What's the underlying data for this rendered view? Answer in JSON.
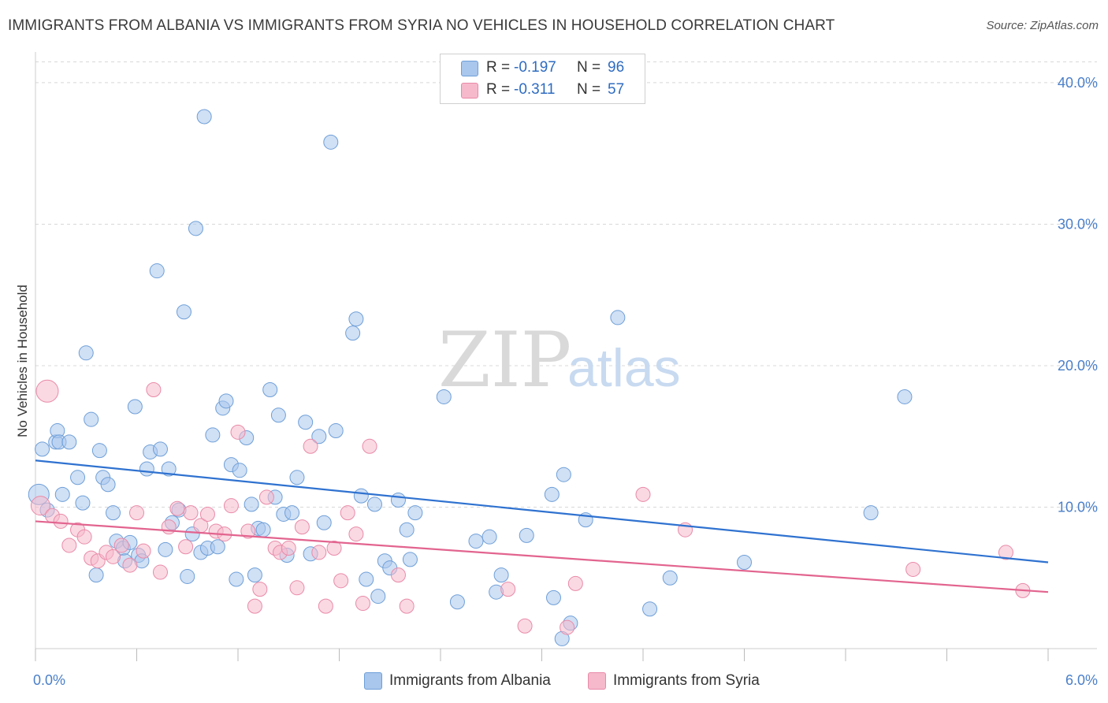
{
  "title": "IMMIGRANTS FROM ALBANIA VS IMMIGRANTS FROM SYRIA NO VEHICLES IN HOUSEHOLD CORRELATION CHART",
  "source": "Source: ZipAtlas.com",
  "watermark": {
    "zip": "ZIP",
    "atlas": "atlas"
  },
  "stats": {
    "albania": {
      "r_label": "R =",
      "r_value": "-0.197",
      "n_label": "N =",
      "n_value": "96"
    },
    "syria": {
      "r_label": "R =",
      "r_value": "-0.311",
      "n_label": "N =",
      "n_value": "57"
    }
  },
  "legend": {
    "albania": "Immigrants from Albania",
    "syria": "Immigrants from Syria"
  },
  "colors": {
    "albania_fill": "#a9c6ec",
    "albania_stroke": "#6e9fd8",
    "albania_line": "#2f72d0",
    "syria_fill": "#f6b9cc",
    "syria_stroke": "#e98aa8",
    "syria_line": "#e2648f",
    "grid": "#d8d8d8",
    "axis_label": "#4a7fc9"
  },
  "chart_data": {
    "type": "scatter",
    "title": "IMMIGRANTS FROM ALBANIA VS IMMIGRANTS FROM SYRIA NO VEHICLES IN HOUSEHOLD CORRELATION CHART",
    "xlabel": "",
    "ylabel": "No Vehicles in Household",
    "xlim": [
      0,
      6
    ],
    "ylim": [
      0,
      41.5
    ],
    "x_tick_labels": [
      "0.0%",
      "6.0%"
    ],
    "y_ticks": [
      10,
      20,
      30,
      40
    ],
    "y_tick_labels": [
      "10.0%",
      "20.0%",
      "30.0%",
      "40.0%"
    ],
    "grid": true,
    "legend_position": "bottom",
    "series": [
      {
        "name": "Immigrants from Albania",
        "r": -0.197,
        "n": 96,
        "trend": {
          "x": [
            0,
            6
          ],
          "y": [
            13.3,
            6.1
          ]
        },
        "points": [
          [
            0.02,
            10.9
          ],
          [
            0.04,
            14.1
          ],
          [
            0.07,
            9.8
          ],
          [
            0.12,
            14.6
          ],
          [
            0.13,
            15.4
          ],
          [
            0.14,
            14.6
          ],
          [
            0.16,
            10.9
          ],
          [
            0.2,
            14.6
          ],
          [
            0.25,
            12.1
          ],
          [
            0.28,
            10.3
          ],
          [
            0.3,
            20.9
          ],
          [
            0.33,
            16.2
          ],
          [
            0.36,
            5.2
          ],
          [
            0.38,
            14.0
          ],
          [
            0.4,
            12.1
          ],
          [
            0.43,
            11.6
          ],
          [
            0.46,
            9.6
          ],
          [
            0.48,
            7.6
          ],
          [
            0.52,
            7.1
          ],
          [
            0.53,
            6.2
          ],
          [
            0.56,
            7.5
          ],
          [
            0.59,
            17.1
          ],
          [
            0.61,
            6.6
          ],
          [
            0.63,
            6.2
          ],
          [
            0.66,
            12.7
          ],
          [
            0.68,
            13.9
          ],
          [
            0.72,
            26.7
          ],
          [
            0.74,
            14.1
          ],
          [
            0.77,
            7.0
          ],
          [
            0.79,
            12.7
          ],
          [
            0.81,
            8.9
          ],
          [
            0.85,
            9.8
          ],
          [
            0.88,
            23.8
          ],
          [
            0.9,
            5.1
          ],
          [
            0.93,
            8.1
          ],
          [
            0.95,
            29.7
          ],
          [
            0.98,
            6.8
          ],
          [
            1.0,
            37.6
          ],
          [
            1.02,
            7.1
          ],
          [
            1.05,
            15.1
          ],
          [
            1.08,
            7.2
          ],
          [
            1.11,
            17.0
          ],
          [
            1.13,
            17.5
          ],
          [
            1.16,
            13.0
          ],
          [
            1.19,
            4.9
          ],
          [
            1.21,
            12.6
          ],
          [
            1.25,
            14.9
          ],
          [
            1.28,
            10.2
          ],
          [
            1.3,
            5.2
          ],
          [
            1.32,
            8.5
          ],
          [
            1.35,
            8.4
          ],
          [
            1.39,
            18.3
          ],
          [
            1.42,
            10.7
          ],
          [
            1.44,
            16.5
          ],
          [
            1.47,
            9.5
          ],
          [
            1.49,
            6.6
          ],
          [
            1.52,
            9.6
          ],
          [
            1.55,
            12.1
          ],
          [
            1.6,
            16.0
          ],
          [
            1.63,
            6.7
          ],
          [
            1.68,
            15.0
          ],
          [
            1.71,
            8.9
          ],
          [
            1.75,
            35.8
          ],
          [
            1.78,
            15.4
          ],
          [
            1.88,
            22.3
          ],
          [
            1.9,
            23.3
          ],
          [
            1.93,
            10.8
          ],
          [
            1.96,
            4.9
          ],
          [
            2.01,
            10.2
          ],
          [
            2.03,
            3.7
          ],
          [
            2.07,
            6.2
          ],
          [
            2.1,
            5.7
          ],
          [
            2.15,
            10.5
          ],
          [
            2.2,
            8.4
          ],
          [
            2.22,
            6.3
          ],
          [
            2.25,
            9.6
          ],
          [
            2.42,
            17.8
          ],
          [
            2.5,
            3.3
          ],
          [
            2.61,
            7.6
          ],
          [
            2.69,
            7.9
          ],
          [
            2.73,
            4.0
          ],
          [
            2.76,
            5.2
          ],
          [
            2.91,
            8.0
          ],
          [
            3.07,
            3.6
          ],
          [
            3.06,
            10.9
          ],
          [
            3.12,
            0.7
          ],
          [
            3.13,
            12.3
          ],
          [
            3.17,
            1.8
          ],
          [
            3.26,
            9.1
          ],
          [
            3.45,
            23.4
          ],
          [
            3.64,
            2.8
          ],
          [
            3.76,
            5.0
          ],
          [
            4.2,
            6.1
          ],
          [
            4.95,
            9.6
          ],
          [
            5.15,
            17.8
          ]
        ]
      },
      {
        "name": "Immigrants from Syria",
        "r": -0.311,
        "n": 57,
        "trend": {
          "x": [
            0,
            6
          ],
          "y": [
            9.0,
            4.0
          ]
        },
        "points": [
          [
            0.03,
            10.1
          ],
          [
            0.07,
            18.2
          ],
          [
            0.1,
            9.4
          ],
          [
            0.15,
            9.0
          ],
          [
            0.2,
            7.3
          ],
          [
            0.25,
            8.4
          ],
          [
            0.29,
            7.9
          ],
          [
            0.33,
            6.4
          ],
          [
            0.37,
            6.2
          ],
          [
            0.42,
            6.8
          ],
          [
            0.46,
            6.5
          ],
          [
            0.51,
            7.3
          ],
          [
            0.56,
            5.9
          ],
          [
            0.6,
            9.6
          ],
          [
            0.64,
            6.9
          ],
          [
            0.7,
            18.3
          ],
          [
            0.74,
            5.4
          ],
          [
            0.79,
            8.6
          ],
          [
            0.84,
            9.9
          ],
          [
            0.89,
            7.2
          ],
          [
            0.92,
            9.6
          ],
          [
            0.98,
            8.7
          ],
          [
            1.02,
            9.5
          ],
          [
            1.07,
            8.3
          ],
          [
            1.12,
            8.1
          ],
          [
            1.16,
            10.1
          ],
          [
            1.2,
            15.3
          ],
          [
            1.26,
            8.3
          ],
          [
            1.3,
            3.0
          ],
          [
            1.33,
            4.2
          ],
          [
            1.37,
            10.7
          ],
          [
            1.42,
            7.1
          ],
          [
            1.45,
            6.8
          ],
          [
            1.5,
            7.1
          ],
          [
            1.55,
            4.3
          ],
          [
            1.58,
            8.6
          ],
          [
            1.63,
            14.3
          ],
          [
            1.68,
            6.8
          ],
          [
            1.72,
            3.0
          ],
          [
            1.77,
            7.1
          ],
          [
            1.81,
            4.8
          ],
          [
            1.85,
            9.6
          ],
          [
            1.9,
            8.1
          ],
          [
            1.94,
            3.2
          ],
          [
            1.98,
            14.3
          ],
          [
            2.15,
            5.2
          ],
          [
            2.2,
            3.0
          ],
          [
            2.8,
            4.2
          ],
          [
            2.9,
            1.6
          ],
          [
            3.15,
            1.5
          ],
          [
            3.2,
            4.6
          ],
          [
            3.6,
            10.9
          ],
          [
            3.85,
            8.4
          ],
          [
            5.2,
            5.6
          ],
          [
            5.75,
            6.8
          ],
          [
            5.85,
            4.1
          ]
        ]
      }
    ]
  }
}
